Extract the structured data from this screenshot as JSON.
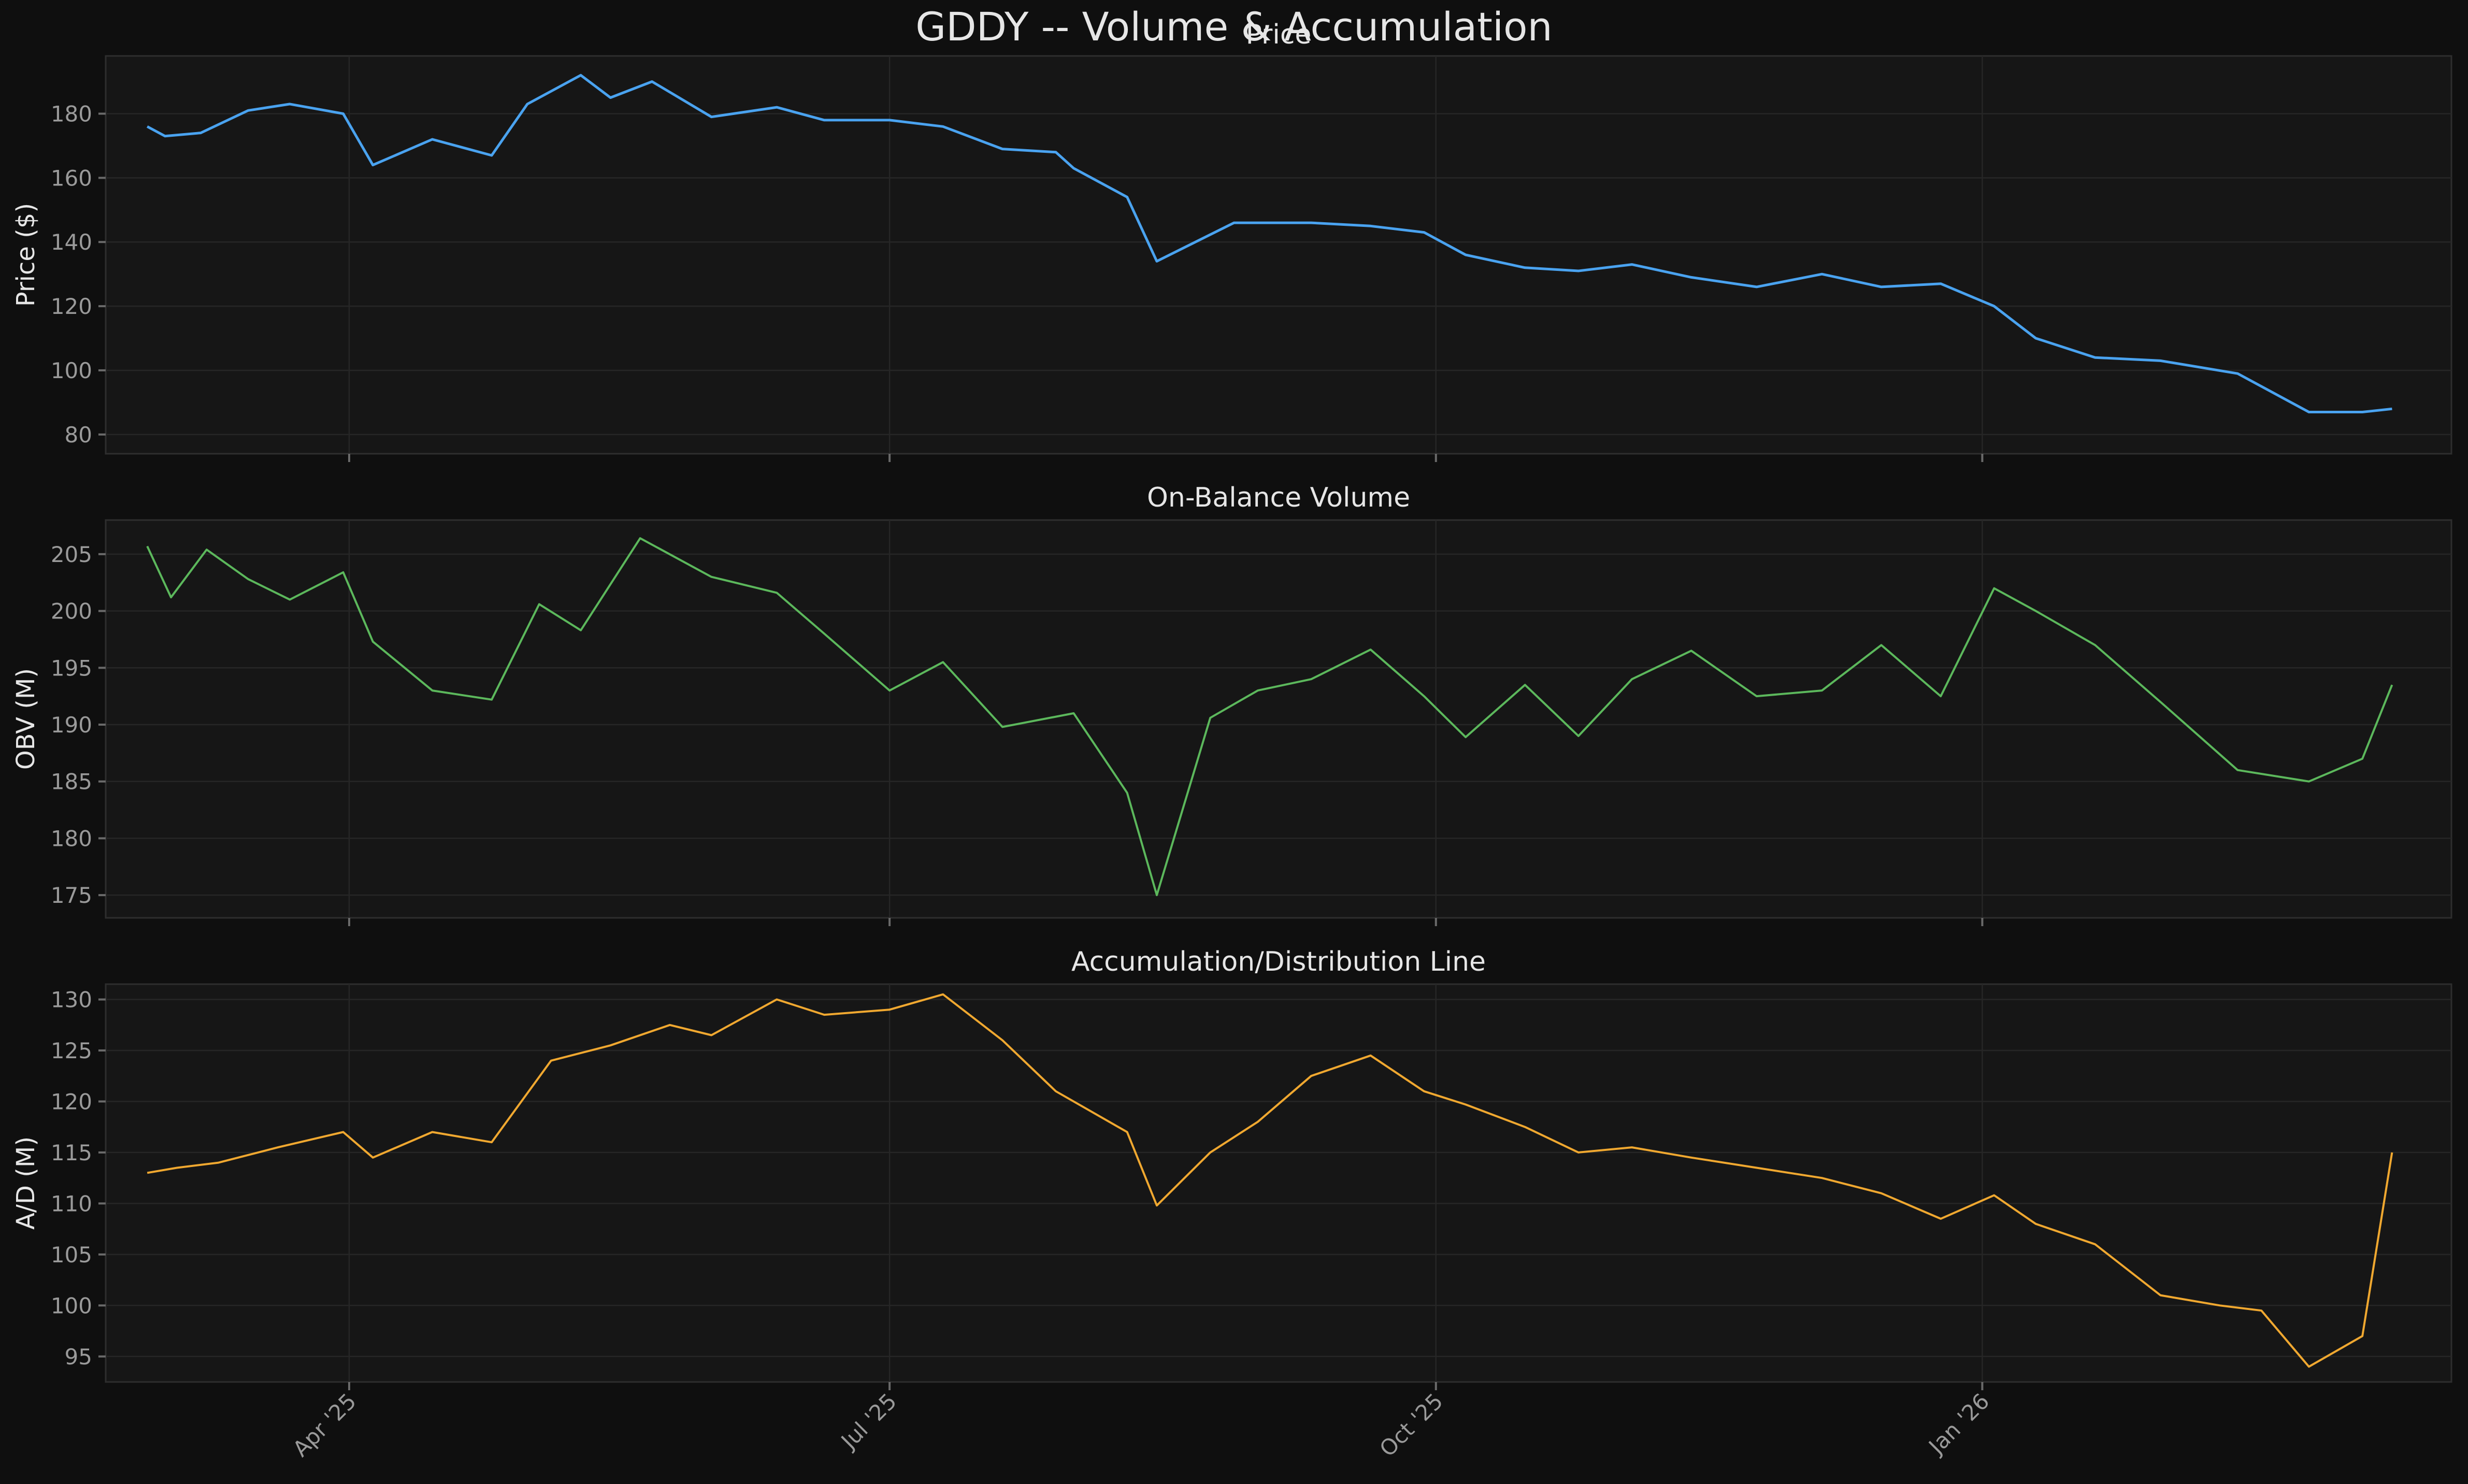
{
  "suptitle": "GDDY -- Volume & Accumulation",
  "colors": {
    "price": "#4aa3f0",
    "obv": "#5cb85c",
    "ad": "#f0a830",
    "background": "#0f0f0f",
    "panel": "#161616"
  },
  "x_axis": {
    "ticks": [
      "2025-04-01",
      "2025-07-01",
      "2025-10-01",
      "2026-01-01"
    ],
    "tick_labels": [
      "Apr '25",
      "Jul '25",
      "Oct '25",
      "Jan '26"
    ]
  },
  "panels": [
    {
      "title": "Price",
      "ylabel": "Price ($)"
    },
    {
      "title": "On-Balance Volume",
      "ylabel": "OBV (M)"
    },
    {
      "title": "Accumulation/Distribution Line",
      "ylabel": "A/D (M)"
    }
  ],
  "chart_data": [
    {
      "type": "line",
      "title": "Price",
      "ylabel": "Price ($)",
      "ylim": [
        74,
        198
      ],
      "yticks": [
        80,
        100,
        120,
        140,
        160,
        180
      ],
      "xlim": [
        "2025-02-19",
        "2026-03-21"
      ],
      "grid": true,
      "series": [
        {
          "x": [
            "2025-02-26",
            "2025-03-01",
            "2025-03-07",
            "2025-03-15",
            "2025-03-22",
            "2025-03-31",
            "2025-04-05",
            "2025-04-15",
            "2025-04-25",
            "2025-05-01",
            "2025-05-10",
            "2025-05-15",
            "2025-05-22",
            "2025-06-01",
            "2025-06-12",
            "2025-06-20",
            "2025-07-01",
            "2025-07-10",
            "2025-07-20",
            "2025-07-29",
            "2025-08-01",
            "2025-08-10",
            "2025-08-15",
            "2025-08-28",
            "2025-09-10",
            "2025-09-20",
            "2025-09-29",
            "2025-10-06",
            "2025-10-16",
            "2025-10-25",
            "2025-11-03",
            "2025-11-13",
            "2025-11-24",
            "2025-12-05",
            "2025-12-15",
            "2025-12-25",
            "2026-01-03",
            "2026-01-10",
            "2026-01-20",
            "2026-01-31",
            "2026-02-13",
            "2026-02-25",
            "2026-03-06",
            "2026-03-11"
          ],
          "y": [
            176,
            173,
            174,
            181,
            183,
            180,
            164,
            172,
            167,
            183,
            192,
            185,
            190,
            179,
            182,
            178,
            178,
            176,
            169,
            168,
            163,
            154,
            134,
            146,
            146,
            145,
            143,
            136,
            132,
            131,
            133,
            129,
            126,
            130,
            126,
            127,
            120,
            110,
            104,
            103,
            99,
            87,
            87,
            88
          ]
        }
      ]
    },
    {
      "type": "line",
      "title": "On-Balance Volume",
      "ylabel": "OBV (M)",
      "ylim": [
        173,
        208
      ],
      "yticks": [
        175,
        180,
        185,
        190,
        195,
        200,
        205
      ],
      "xlim": [
        "2025-02-19",
        "2026-03-21"
      ],
      "grid": true,
      "series": [
        {
          "x": [
            "2025-02-26",
            "2025-03-02",
            "2025-03-08",
            "2025-03-15",
            "2025-03-22",
            "2025-03-31",
            "2025-04-05",
            "2025-04-15",
            "2025-04-25",
            "2025-05-03",
            "2025-05-10",
            "2025-05-20",
            "2025-06-01",
            "2025-06-12",
            "2025-06-20",
            "2025-07-01",
            "2025-07-10",
            "2025-07-20",
            "2025-08-01",
            "2025-08-10",
            "2025-08-15",
            "2025-08-24",
            "2025-09-01",
            "2025-09-10",
            "2025-09-20",
            "2025-09-29",
            "2025-10-06",
            "2025-10-16",
            "2025-10-25",
            "2025-11-03",
            "2025-11-13",
            "2025-11-24",
            "2025-12-05",
            "2025-12-15",
            "2025-12-25",
            "2026-01-03",
            "2026-01-10",
            "2026-01-20",
            "2026-01-31",
            "2026-02-13",
            "2026-02-25",
            "2026-03-06",
            "2026-03-11"
          ],
          "y": [
            205.7,
            201.2,
            205.4,
            202.8,
            201,
            203.4,
            197.3,
            193,
            192.2,
            200.6,
            198.3,
            206.4,
            203,
            201.6,
            198,
            193,
            195.5,
            189.8,
            191,
            184,
            175,
            190.6,
            193,
            194,
            196.6,
            192.5,
            188.9,
            193.5,
            189,
            194,
            196.5,
            192.5,
            193,
            197,
            192.5,
            202,
            200,
            197,
            192,
            186,
            185,
            187,
            193.5
          ]
        }
      ]
    },
    {
      "type": "line",
      "title": "Accumulation/Distribution Line",
      "ylabel": "A/D (M)",
      "ylim": [
        92.5,
        131.5
      ],
      "yticks": [
        95,
        100,
        105,
        110,
        115,
        120,
        125,
        130
      ],
      "xlim": [
        "2025-02-19",
        "2026-03-21"
      ],
      "grid": true,
      "series": [
        {
          "x": [
            "2025-02-26",
            "2025-03-03",
            "2025-03-10",
            "2025-03-20",
            "2025-03-31",
            "2025-04-05",
            "2025-04-15",
            "2025-04-25",
            "2025-05-05",
            "2025-05-15",
            "2025-05-25",
            "2025-06-01",
            "2025-06-12",
            "2025-06-20",
            "2025-07-01",
            "2025-07-10",
            "2025-07-20",
            "2025-07-29",
            "2025-08-10",
            "2025-08-15",
            "2025-08-24",
            "2025-09-01",
            "2025-09-10",
            "2025-09-20",
            "2025-09-29",
            "2025-10-06",
            "2025-10-16",
            "2025-10-25",
            "2025-11-03",
            "2025-11-13",
            "2025-11-24",
            "2025-12-05",
            "2025-12-15",
            "2025-12-25",
            "2026-01-03",
            "2026-01-10",
            "2026-01-20",
            "2026-01-31",
            "2026-02-10",
            "2026-02-17",
            "2026-02-25",
            "2026-03-06",
            "2026-03-11"
          ],
          "y": [
            113,
            113.5,
            114,
            115.5,
            117,
            114.5,
            117,
            116,
            124,
            125.5,
            127.5,
            126.5,
            130,
            128.5,
            129,
            130.5,
            126,
            121,
            117,
            109.8,
            115,
            118,
            122.5,
            124.5,
            121,
            119.7,
            117.5,
            115,
            115.5,
            114.5,
            113.5,
            112.5,
            111,
            108.5,
            110.8,
            108,
            106,
            101,
            100,
            99.5,
            94,
            97,
            115
          ]
        }
      ]
    }
  ]
}
